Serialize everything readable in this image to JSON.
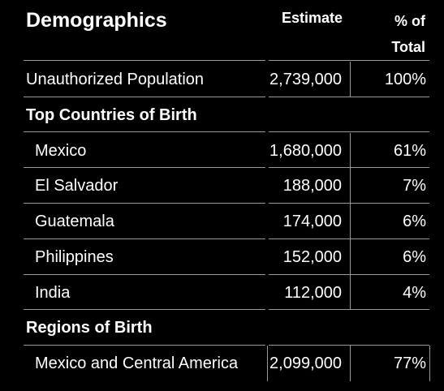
{
  "header": {
    "title": "Demographics",
    "estimate": "Estimate",
    "percent_line1": "% of",
    "percent_line2": "Total"
  },
  "rows": [
    {
      "label": "Unauthorized Population",
      "estimate": "2,739,000",
      "percent": "100%"
    },
    {
      "label": "Top Countries of Birth",
      "estimate": "",
      "percent": ""
    },
    {
      "label": "Mexico",
      "estimate": "1,680,000",
      "percent": "61%"
    },
    {
      "label": "El Salvador",
      "estimate": "188,000",
      "percent": "7%"
    },
    {
      "label": "Guatemala",
      "estimate": "174,000",
      "percent": "6%"
    },
    {
      "label": "Philippines",
      "estimate": "152,000",
      "percent": "6%"
    },
    {
      "label": "India",
      "estimate": "112,000",
      "percent": "4%"
    },
    {
      "label": "Regions of Birth",
      "estimate": "",
      "percent": ""
    },
    {
      "label": "Mexico and Central America",
      "estimate": "2,099,000",
      "percent": "77%"
    }
  ]
}
